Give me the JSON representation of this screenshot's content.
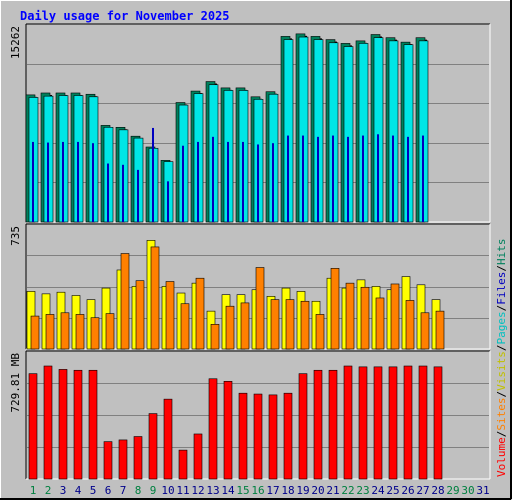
{
  "chart_data": {
    "type": "bar",
    "title": "Daily usage for November 2025",
    "days": [
      "1",
      "2",
      "3",
      "4",
      "5",
      "6",
      "7",
      "8",
      "9",
      "10",
      "11",
      "12",
      "13",
      "14",
      "15",
      "16",
      "17",
      "18",
      "19",
      "20",
      "21",
      "22",
      "23",
      "24",
      "25",
      "26",
      "27",
      "28",
      "29",
      "30",
      "31"
    ],
    "weekend_days": [
      "1",
      "2",
      "8",
      "9",
      "15",
      "16",
      "22",
      "23",
      "29",
      "30"
    ],
    "legend": {
      "hits": "Hits",
      "files": "Files",
      "pages": "Pages",
      "visits": "Visits",
      "sites": "Sites",
      "volume": "Volume",
      "separator": "/"
    },
    "panels": [
      {
        "id": "hits-files",
        "ymax_label": "15262",
        "ymax": 15262,
        "series": [
          {
            "name": "Hits",
            "color": "#00805c",
            "values": [
              10000,
              10150,
              10150,
              10150,
              10050,
              7600,
              7450,
              6750,
              5900,
              4850,
              9400,
              10300,
              11050,
              10550,
              10550,
              9850,
              10250,
              14600,
              14800,
              14600,
              14350,
              14050,
              14250,
              14750,
              14500,
              14150,
              14500,
              null,
              null,
              null
            ]
          },
          {
            "name": "Files",
            "color": "#00e6e6",
            "values": [
              9800,
              9900,
              9950,
              9950,
              9850,
              7450,
              7250,
              6600,
              5800,
              4750,
              9200,
              10100,
              10800,
              10350,
              10350,
              9650,
              10050,
              14350,
              14550,
              14350,
              14100,
              13800,
              14050,
              14500,
              14250,
              13950,
              14250,
              null,
              null,
              null
            ]
          },
          {
            "name": "Pages",
            "color": "#0000c0",
            "values": [
              6300,
              6250,
              6300,
              6300,
              6200,
              4600,
              4500,
              4100,
              7400,
              3200,
              6000,
              6300,
              6700,
              6300,
              6300,
              6100,
              6200,
              6800,
              6800,
              6700,
              6800,
              6700,
              6800,
              6900,
              6800,
              6700,
              6800,
              null,
              null,
              null
            ]
          }
        ]
      },
      {
        "id": "visits-sites",
        "ymax_label": "735",
        "ymax": 735,
        "series": [
          {
            "name": "Visits",
            "color": "#ffff00",
            "values": [
              350,
              335,
              345,
              325,
              300,
              370,
              480,
              380,
              660,
              380,
              340,
              400,
              230,
              330,
              330,
              360,
              320,
              370,
              350,
              290,
              430,
              370,
              420,
              380,
              360,
              440,
              390,
              300
            ]
          },
          {
            "name": "Sites",
            "color": "#ff8000",
            "values": [
              200,
              210,
              220,
              210,
              190,
              215,
              580,
              415,
              620,
              410,
              275,
              430,
              150,
              260,
              280,
              495,
              300,
              300,
              290,
              210,
              490,
              400,
              375,
              310,
              395,
              295,
              220,
              230
            ]
          }
        ]
      },
      {
        "id": "volume",
        "ymax_label": "729.81 MB",
        "ymax": 729.81,
        "series": [
          {
            "name": "Volume",
            "color": "#ff0000",
            "values": [
              620,
              665,
              645,
              640,
              640,
              220,
              230,
              250,
              385,
              470,
              170,
              265,
              590,
              575,
              505,
              500,
              495,
              505,
              620,
              640,
              640,
              665,
              660,
              660,
              660,
              665,
              665,
              660,
              null,
              null,
              null
            ]
          }
        ]
      }
    ]
  },
  "colors": {
    "background": "#c0c0c0",
    "title": "#0000ff",
    "axis_label": "#000000",
    "day_label": "#00008b",
    "weekend_label": "#008040",
    "grid": "#808080",
    "frame_dark": "#000000",
    "frame_light": "#ffffff",
    "shadow": "#000000"
  }
}
